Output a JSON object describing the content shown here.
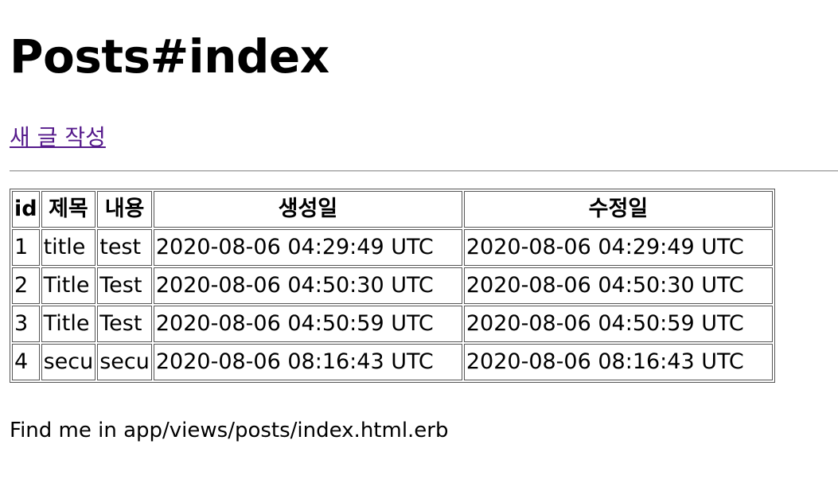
{
  "page": {
    "title": "Posts#index",
    "new_post_link": "새 글 작성",
    "footer": "Find me in app/views/posts/index.html.erb"
  },
  "table": {
    "headers": {
      "id": "id",
      "title": "제목",
      "content": "내용",
      "created": "생성일",
      "updated": "수정일"
    },
    "rows": [
      {
        "id": "1",
        "title": "title",
        "content": "test",
        "created": "2020-08-06 04:29:49 UTC",
        "updated": "2020-08-06 04:29:49 UTC"
      },
      {
        "id": "2",
        "title": "Title",
        "content": "Test",
        "created": "2020-08-06 04:50:30 UTC",
        "updated": "2020-08-06 04:50:30 UTC"
      },
      {
        "id": "3",
        "title": "Title",
        "content": "Test",
        "created": "2020-08-06 04:50:59 UTC",
        "updated": "2020-08-06 04:50:59 UTC"
      },
      {
        "id": "4",
        "title": "secu",
        "content": "secu",
        "created": "2020-08-06 08:16:43 UTC",
        "updated": "2020-08-06 08:16:43 UTC"
      }
    ]
  }
}
